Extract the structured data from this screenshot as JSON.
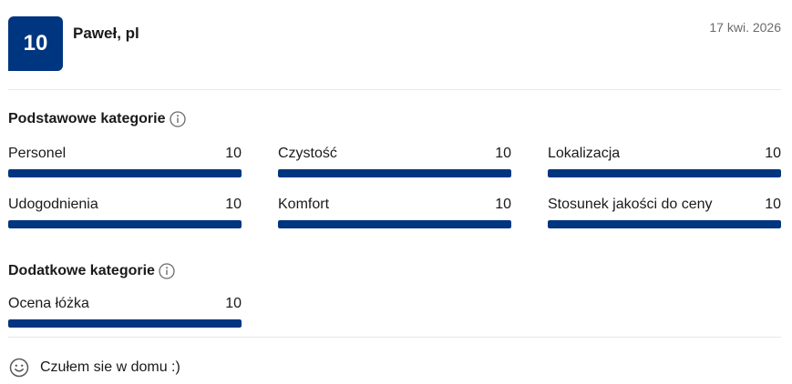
{
  "colors": {
    "brand": "#003580",
    "muted": "#6b6b6b"
  },
  "review": {
    "score": "10",
    "reviewer": "Paweł, pl",
    "date": "17 kwi. 2026"
  },
  "basic": {
    "title": "Podstawowe kategorie",
    "icon": "info-icon",
    "items": [
      {
        "label": "Personel",
        "score": "10",
        "fill": 1.0
      },
      {
        "label": "Czystość",
        "score": "10",
        "fill": 1.0
      },
      {
        "label": "Lokalizacja",
        "score": "10",
        "fill": 1.0
      },
      {
        "label": "Udogodnienia",
        "score": "10",
        "fill": 1.0
      },
      {
        "label": "Komfort",
        "score": "10",
        "fill": 1.0
      },
      {
        "label": "Stosunek jakości do ceny",
        "score": "10",
        "fill": 1.0
      }
    ]
  },
  "extra": {
    "title": "Dodatkowe kategorie",
    "icon": "info-icon",
    "items": [
      {
        "label": "Ocena łóżka",
        "score": "10",
        "fill": 1.0
      }
    ]
  },
  "comment": {
    "icon": "smile-icon",
    "text": "Czułem sie w domu :)"
  }
}
